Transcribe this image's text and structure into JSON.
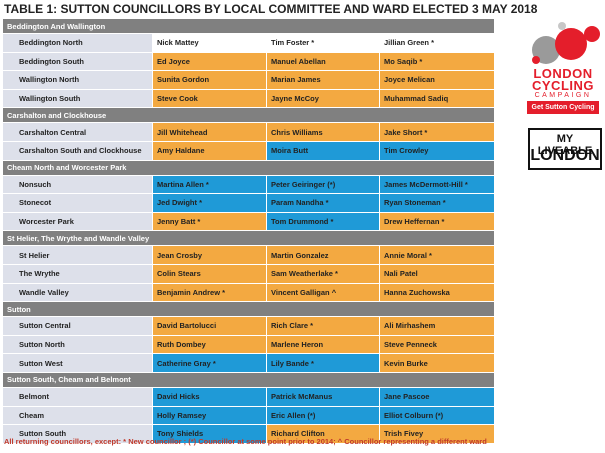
{
  "title": "TABLE 1: SUTTON COUNCILLORS BY LOCAL COMMITTEE AND WARD ELECTED 3 MAY 2018",
  "colors": {
    "section": "#808080",
    "ward": "#dde0ea",
    "white": "#ffffff",
    "orange": "#f3a941",
    "blue": "#1f9ad7",
    "footer": "#c0392b",
    "brand_red": "#e41e2b"
  },
  "sections": [
    {
      "name": "Beddington And Wallington",
      "wards": [
        {
          "ward": "Beddington North",
          "councillors": [
            {
              "name": "Nick Mattey",
              "color": "white"
            },
            {
              "name": "Tim Foster *",
              "color": "white"
            },
            {
              "name": "Jillian Green *",
              "color": "white"
            }
          ]
        },
        {
          "ward": "Beddington South",
          "councillors": [
            {
              "name": "Ed Joyce",
              "color": "orange"
            },
            {
              "name": "Manuel Abellan",
              "color": "orange"
            },
            {
              "name": "Mo Saqib *",
              "color": "orange"
            }
          ]
        },
        {
          "ward": "Wallington North",
          "councillors": [
            {
              "name": "Sunita Gordon",
              "color": "orange"
            },
            {
              "name": "Marian James",
              "color": "orange"
            },
            {
              "name": "Joyce Melican",
              "color": "orange"
            }
          ]
        },
        {
          "ward": "Wallington South",
          "councillors": [
            {
              "name": "Steve Cook",
              "color": "orange"
            },
            {
              "name": "Jayne McCoy",
              "color": "orange"
            },
            {
              "name": "Muhammad Sadiq",
              "color": "orange"
            }
          ]
        }
      ]
    },
    {
      "name": "Carshalton and Clockhouse",
      "wards": [
        {
          "ward": "Carshalton Central",
          "councillors": [
            {
              "name": "Jill Whitehead",
              "color": "orange"
            },
            {
              "name": "Chris Williams",
              "color": "orange"
            },
            {
              "name": "Jake Short *",
              "color": "orange"
            }
          ]
        },
        {
          "ward": "Carshalton South and Clockhouse",
          "councillors": [
            {
              "name": "Amy Haldane",
              "color": "orange"
            },
            {
              "name": "Moira Butt",
              "color": "blue"
            },
            {
              "name": "Tim Crowley",
              "color": "blue"
            }
          ]
        }
      ]
    },
    {
      "name": "Cheam North and Worcester Park",
      "wards": [
        {
          "ward": "Nonsuch",
          "councillors": [
            {
              "name": "Martina Allen *",
              "color": "blue"
            },
            {
              "name": "Peter Geiringer (*)",
              "color": "blue"
            },
            {
              "name": "James McDermott-Hill *",
              "color": "blue"
            }
          ]
        },
        {
          "ward": "Stonecot",
          "councillors": [
            {
              "name": "Jed Dwight *",
              "color": "blue"
            },
            {
              "name": "Param Nandha *",
              "color": "blue"
            },
            {
              "name": "Ryan Stoneman *",
              "color": "blue"
            }
          ]
        },
        {
          "ward": "Worcester Park",
          "councillors": [
            {
              "name": "Jenny Batt *",
              "color": "orange"
            },
            {
              "name": "Tom Drummond *",
              "color": "blue"
            },
            {
              "name": "Drew Heffernan *",
              "color": "orange"
            }
          ]
        }
      ]
    },
    {
      "name": "St Helier, The Wrythe and Wandle Valley",
      "wards": [
        {
          "ward": "St Helier",
          "councillors": [
            {
              "name": "Jean Crosby",
              "color": "orange"
            },
            {
              "name": "Martin Gonzalez",
              "color": "orange"
            },
            {
              "name": "Annie Moral *",
              "color": "orange"
            }
          ]
        },
        {
          "ward": "The Wrythe",
          "councillors": [
            {
              "name": "Colin Stears",
              "color": "orange"
            },
            {
              "name": "Sam Weatherlake *",
              "color": "orange"
            },
            {
              "name": "Nali Patel",
              "color": "orange"
            }
          ]
        },
        {
          "ward": "Wandle Valley",
          "councillors": [
            {
              "name": "Benjamin Andrew *",
              "color": "orange"
            },
            {
              "name": "Vincent Galligan ^",
              "color": "orange"
            },
            {
              "name": "Hanna Zuchowska",
              "color": "orange"
            }
          ]
        }
      ]
    },
    {
      "name": "Sutton",
      "wards": [
        {
          "ward": "Sutton Central",
          "councillors": [
            {
              "name": "David Bartolucci",
              "color": "orange"
            },
            {
              "name": "Rich Clare *",
              "color": "orange"
            },
            {
              "name": "Ali Mirhashem",
              "color": "orange"
            }
          ]
        },
        {
          "ward": "Sutton North",
          "councillors": [
            {
              "name": "Ruth Dombey",
              "color": "orange"
            },
            {
              "name": "Marlene Heron",
              "color": "orange"
            },
            {
              "name": "Steve Penneck",
              "color": "orange"
            }
          ]
        },
        {
          "ward": "Sutton West",
          "councillors": [
            {
              "name": "Catherine Gray *",
              "color": "blue"
            },
            {
              "name": "Lily Bande *",
              "color": "blue"
            },
            {
              "name": "Kevin Burke",
              "color": "orange"
            }
          ]
        }
      ]
    },
    {
      "name": "Sutton South, Cheam and Belmont",
      "wards": [
        {
          "ward": "Belmont",
          "councillors": [
            {
              "name": "David Hicks",
              "color": "blue"
            },
            {
              "name": "Patrick McManus",
              "color": "blue"
            },
            {
              "name": "Jane Pascoe",
              "color": "blue"
            }
          ]
        },
        {
          "ward": "Cheam",
          "councillors": [
            {
              "name": "Holly Ramsey",
              "color": "blue"
            },
            {
              "name": "Eric Allen (*)",
              "color": "blue"
            },
            {
              "name": "Elliot Colburn (*)",
              "color": "blue"
            }
          ]
        },
        {
          "ward": "Sutton South",
          "councillors": [
            {
              "name": "Tony Shields",
              "color": "blue"
            },
            {
              "name": "Richard Clifton",
              "color": "orange"
            },
            {
              "name": "Trish Fivey",
              "color": "orange"
            }
          ]
        }
      ]
    }
  ],
  "footer": "All returning councillors, except: * New councillor ; (*) Councillor at some point prior to 2014;  ^ Councillor representing a different ward",
  "logo_lcc": {
    "line1": "LONDON",
    "line2": "CYCLING",
    "line3": "CAMPAIGN",
    "button": "Get Sutton Cycling"
  },
  "logo_mll": {
    "line1": "MY LIVEABLE",
    "line2": "LONDON"
  }
}
